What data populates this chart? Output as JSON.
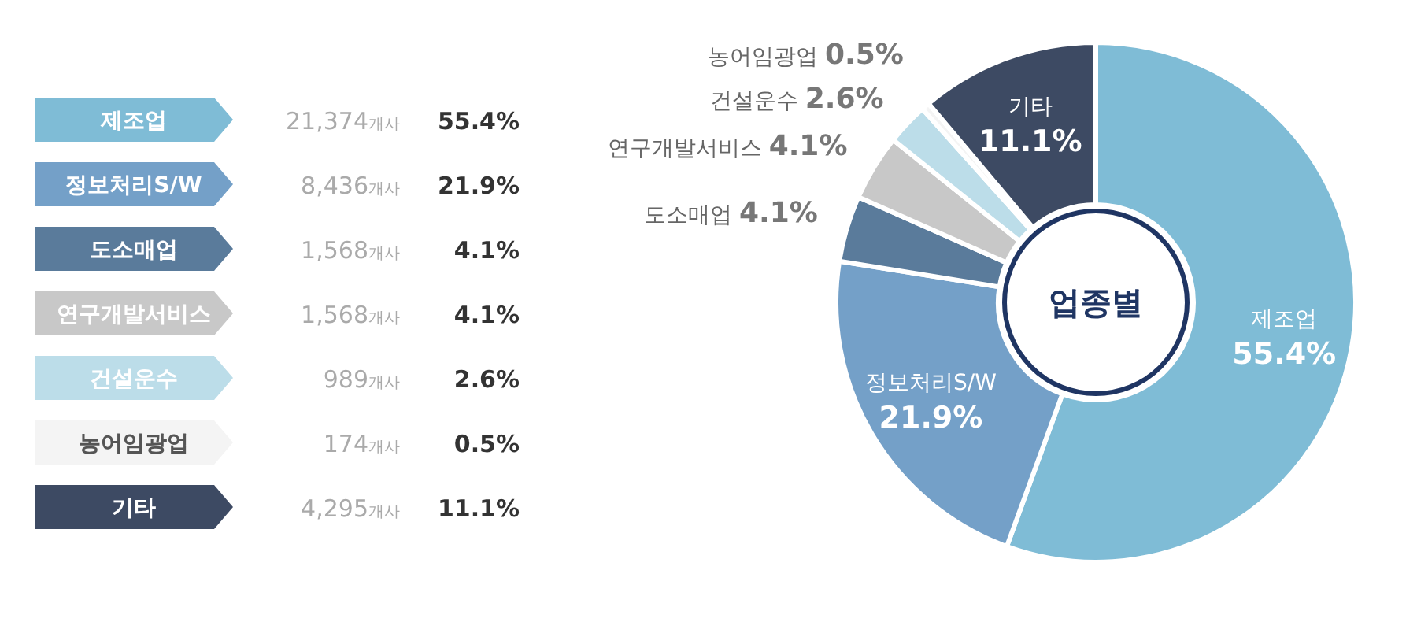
{
  "chart_data": [
    {
      "type": "other",
      "colors": [
        "#7fbcd6",
        "#74a0c8",
        "#5a7b9b",
        "#c8c8c8",
        "#bcdde9",
        "#f4f4f4",
        "#3d4a63"
      ],
      "annotations": [
        "제조업",
        "21,374개사",
        "55.4%",
        "정보처리S/W",
        "8,436개사",
        "21.9%",
        "도소매업",
        "1,568개사",
        "4.1%",
        "연구개발서비스",
        "1,568개사",
        "4.1%",
        "건설운수",
        "989개사",
        "2.6%",
        "농어임광업",
        "174개사",
        "0.5%",
        "기타",
        "4,295개사",
        "11.1%"
      ]
    },
    {
      "type": "donut",
      "title": "업종별",
      "categories": [
        "제조업",
        "정보처리S/W",
        "도소매업",
        "연구개발서비스",
        "건설운수",
        "농어임광업",
        "기타"
      ],
      "values": [
        55.4,
        21.9,
        4.1,
        4.1,
        2.6,
        0.5,
        11.1
      ],
      "colors": [
        "#7fbcd6",
        "#74a0c8",
        "#5a7b9b",
        "#c8c8c8",
        "#bcdde9",
        "#f4f4f4",
        "#3d4a63"
      ],
      "value_labels": [
        "55.4%",
        "21.9%",
        "4.1%",
        "4.1%",
        "2.6%",
        "0.5%",
        "11.1%"
      ]
    }
  ]
}
